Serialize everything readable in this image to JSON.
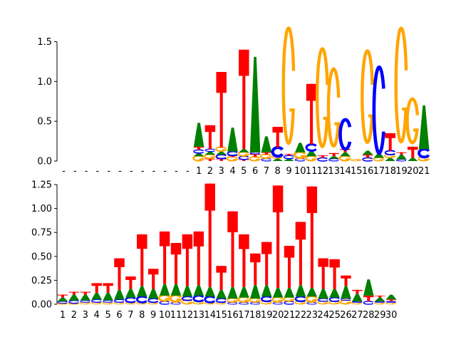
{
  "colors": {
    "A": "#008000",
    "C": "#0000ff",
    "G": "#ffa500",
    "T": "#ff0000"
  },
  "chart_data": [
    {
      "type": "sequence-logo",
      "title": "",
      "xlabel": "",
      "ylabel": "",
      "ylim": [
        0,
        1.55
      ],
      "y_ticks": [
        0.0,
        0.5,
        1.0,
        1.5
      ],
      "y_tick_labels": [
        "0.0",
        "0.5",
        "1.0",
        "1.5"
      ],
      "x_tick_labels": [
        "-",
        "-",
        "-",
        "-",
        "-",
        "-",
        "-",
        "-",
        "-",
        "-",
        "-",
        "-",
        "1",
        "2",
        "3",
        "4",
        "5",
        "6",
        "7",
        "8",
        "9",
        "10",
        "11",
        "12",
        "13",
        "14",
        "15",
        "16",
        "17",
        "18",
        "19",
        "20",
        "21"
      ],
      "positions": [
        [],
        [],
        [],
        [],
        [],
        [],
        [],
        [],
        [],
        [],
        [],
        [],
        [
          [
            "G",
            0.06
          ],
          [
            "A",
            0.04
          ],
          [
            "C",
            0.04
          ],
          [
            "T",
            0.04
          ],
          [
            "A",
            0.3
          ]
        ],
        [
          [
            "T",
            0.03
          ],
          [
            "G",
            0.05
          ],
          [
            "A",
            0.04
          ],
          [
            "C",
            0.03
          ],
          [
            "T",
            0.3
          ]
        ],
        [
          [
            "T",
            0.03
          ],
          [
            "C",
            0.05
          ],
          [
            "A",
            0.04
          ],
          [
            "G",
            0.05
          ],
          [
            "T",
            0.95
          ]
        ],
        [
          [
            "G",
            0.05
          ],
          [
            "T",
            0.02
          ],
          [
            "C",
            0.05
          ],
          [
            "A",
            0.3
          ]
        ],
        [
          [
            "T",
            0.02
          ],
          [
            "C",
            0.04
          ],
          [
            "G",
            0.05
          ],
          [
            "A",
            0.04
          ],
          [
            "T",
            1.25
          ]
        ],
        [
          [
            "G",
            0.05
          ],
          [
            "T",
            0.04
          ],
          [
            "C",
            0.02
          ],
          [
            "A",
            1.2
          ]
        ],
        [
          [
            "C",
            0.03
          ],
          [
            "G",
            0.05
          ],
          [
            "T",
            0.03
          ],
          [
            "A",
            0.2
          ]
        ],
        [
          [
            "A",
            0.03
          ],
          [
            "G",
            0.03
          ],
          [
            "C",
            0.11
          ],
          [
            "T",
            0.26
          ]
        ],
        [
          [
            "A",
            0.03
          ],
          [
            "C",
            0.04
          ],
          [
            "T",
            0.02
          ],
          [
            "G",
            1.45
          ]
        ],
        [
          [
            "C",
            0.03
          ],
          [
            "G",
            0.08
          ],
          [
            "A",
            0.12
          ]
        ],
        [
          [
            "G",
            0.06
          ],
          [
            "A",
            0.07
          ],
          [
            "C",
            0.08
          ],
          [
            "T",
            0.76
          ]
        ],
        [
          [
            "C",
            0.04
          ],
          [
            "T",
            0.03
          ],
          [
            "G",
            1.23
          ]
        ],
        [
          [
            "C",
            0.03
          ],
          [
            "A",
            0.03
          ],
          [
            "T",
            0.04
          ],
          [
            "G",
            0.97
          ]
        ],
        [
          [
            "G",
            0.06
          ],
          [
            "A",
            0.05
          ],
          [
            "T",
            0.04
          ],
          [
            "C",
            0.37
          ]
        ],
        [
          [
            "G",
            0.02
          ]
        ],
        [
          [
            "C",
            0.04
          ],
          [
            "T",
            0.04
          ],
          [
            "A",
            0.05
          ],
          [
            "G",
            1.15
          ]
        ],
        [
          [
            "G",
            0.04
          ],
          [
            "A",
            0.06
          ],
          [
            "C",
            1.08
          ]
        ],
        [
          [
            "A",
            0.04
          ],
          [
            "G",
            0.04
          ],
          [
            "C",
            0.05
          ],
          [
            "T",
            0.22
          ]
        ],
        [
          [
            "C",
            0.02
          ],
          [
            "A",
            0.06
          ],
          [
            "T",
            0.03
          ],
          [
            "G",
            1.43
          ]
        ],
        [
          [
            "A",
            0.04
          ],
          [
            "T",
            0.14
          ],
          [
            "G",
            0.55
          ]
        ],
        [
          [
            "G",
            0.05
          ],
          [
            "C",
            0.1
          ],
          [
            "A",
            0.55
          ]
        ]
      ]
    },
    {
      "type": "sequence-logo",
      "title": "",
      "xlabel": "",
      "ylabel": "",
      "ylim": [
        0,
        1.28
      ],
      "y_ticks": [
        0.0,
        0.25,
        0.5,
        0.75,
        1.0,
        1.25
      ],
      "y_tick_labels": [
        "0.00",
        "0.25",
        "0.50",
        "0.75",
        "1.00",
        "1.25"
      ],
      "x_tick_labels": [
        "1",
        "2",
        "3",
        "4",
        "5",
        "6",
        "7",
        "8",
        "9",
        "10",
        "11",
        "12",
        "13",
        "14",
        "15",
        "16",
        "17",
        "18",
        "19",
        "20",
        "21",
        "22",
        "23",
        "24",
        "25",
        "26",
        "27",
        "28",
        "29",
        "30"
      ],
      "positions": [
        [
          [
            "G",
            0.01
          ],
          [
            "C",
            0.02
          ],
          [
            "A",
            0.04
          ],
          [
            "T",
            0.03
          ]
        ],
        [
          [
            "G",
            0.01
          ],
          [
            "C",
            0.03
          ],
          [
            "A",
            0.06
          ],
          [
            "T",
            0.03
          ]
        ],
        [
          [
            "G",
            0.02
          ],
          [
            "C",
            0.02
          ],
          [
            "A",
            0.06
          ],
          [
            "T",
            0.03
          ]
        ],
        [
          [
            "G",
            0.02
          ],
          [
            "C",
            0.03
          ],
          [
            "A",
            0.07
          ],
          [
            "T",
            0.1
          ]
        ],
        [
          [
            "G",
            0.02
          ],
          [
            "C",
            0.02
          ],
          [
            "A",
            0.08
          ],
          [
            "T",
            0.1
          ]
        ],
        [
          [
            "G",
            0.02
          ],
          [
            "C",
            0.03
          ],
          [
            "A",
            0.1
          ],
          [
            "T",
            0.33
          ]
        ],
        [
          [
            "G",
            0.02
          ],
          [
            "C",
            0.05
          ],
          [
            "A",
            0.09
          ],
          [
            "T",
            0.13
          ]
        ],
        [
          [
            "G",
            0.02
          ],
          [
            "C",
            0.06
          ],
          [
            "A",
            0.11
          ],
          [
            "T",
            0.54
          ]
        ],
        [
          [
            "G",
            0.02
          ],
          [
            "C",
            0.04
          ],
          [
            "A",
            0.1
          ],
          [
            "T",
            0.21
          ]
        ],
        [
          [
            "C",
            0.03
          ],
          [
            "G",
            0.06
          ],
          [
            "A",
            0.12
          ],
          [
            "T",
            0.55
          ]
        ],
        [
          [
            "C",
            0.02
          ],
          [
            "G",
            0.07
          ],
          [
            "A",
            0.12
          ],
          [
            "T",
            0.43
          ]
        ],
        [
          [
            "G",
            0.04
          ],
          [
            "C",
            0.04
          ],
          [
            "A",
            0.11
          ],
          [
            "T",
            0.54
          ]
        ],
        [
          [
            "G",
            0.03
          ],
          [
            "C",
            0.06
          ],
          [
            "A",
            0.11
          ],
          [
            "T",
            0.56
          ]
        ],
        [
          [
            "G",
            0.02
          ],
          [
            "C",
            0.06
          ],
          [
            "A",
            0.1
          ],
          [
            "T",
            1.08
          ]
        ],
        [
          [
            "G",
            0.02
          ],
          [
            "C",
            0.04
          ],
          [
            "A",
            0.09
          ],
          [
            "T",
            0.25
          ]
        ],
        [
          [
            "C",
            0.02
          ],
          [
            "G",
            0.04
          ],
          [
            "A",
            0.12
          ],
          [
            "T",
            0.79
          ]
        ],
        [
          [
            "C",
            0.02
          ],
          [
            "G",
            0.05
          ],
          [
            "A",
            0.11
          ],
          [
            "T",
            0.55
          ]
        ],
        [
          [
            "C",
            0.02
          ],
          [
            "G",
            0.04
          ],
          [
            "A",
            0.14
          ],
          [
            "T",
            0.33
          ]
        ],
        [
          [
            "G",
            0.03
          ],
          [
            "C",
            0.05
          ],
          [
            "A",
            0.12
          ],
          [
            "T",
            0.45
          ]
        ],
        [
          [
            "C",
            0.02
          ],
          [
            "G",
            0.05
          ],
          [
            "A",
            0.1
          ],
          [
            "T",
            1.07
          ]
        ],
        [
          [
            "C",
            0.03
          ],
          [
            "G",
            0.04
          ],
          [
            "A",
            0.1
          ],
          [
            "T",
            0.44
          ]
        ],
        [
          [
            "G",
            0.03
          ],
          [
            "C",
            0.05
          ],
          [
            "A",
            0.12
          ],
          [
            "T",
            0.66
          ]
        ],
        [
          [
            "C",
            0.02
          ],
          [
            "G",
            0.06
          ],
          [
            "A",
            0.09
          ],
          [
            "T",
            1.06
          ]
        ],
        [
          [
            "G",
            0.03
          ],
          [
            "C",
            0.03
          ],
          [
            "A",
            0.1
          ],
          [
            "T",
            0.32
          ]
        ],
        [
          [
            "G",
            0.03
          ],
          [
            "C",
            0.04
          ],
          [
            "A",
            0.09
          ],
          [
            "T",
            0.31
          ]
        ],
        [
          [
            "G",
            0.04
          ],
          [
            "C",
            0.02
          ],
          [
            "A",
            0.13
          ],
          [
            "T",
            0.11
          ]
        ],
        [
          [
            "G",
            0.02
          ],
          [
            "C",
            0.01
          ],
          [
            "A",
            0.08
          ],
          [
            "T",
            0.04
          ]
        ],
        [
          [
            "C",
            0.03
          ],
          [
            "T",
            0.06
          ],
          [
            "A",
            0.17
          ]
        ],
        [
          [
            "G",
            0.02
          ],
          [
            "C",
            0.01
          ],
          [
            "A",
            0.04
          ],
          [
            "T",
            0.02
          ]
        ],
        [
          [
            "G",
            0.02
          ],
          [
            "C",
            0.01
          ],
          [
            "T",
            0.02
          ],
          [
            "A",
            0.05
          ]
        ]
      ]
    }
  ]
}
